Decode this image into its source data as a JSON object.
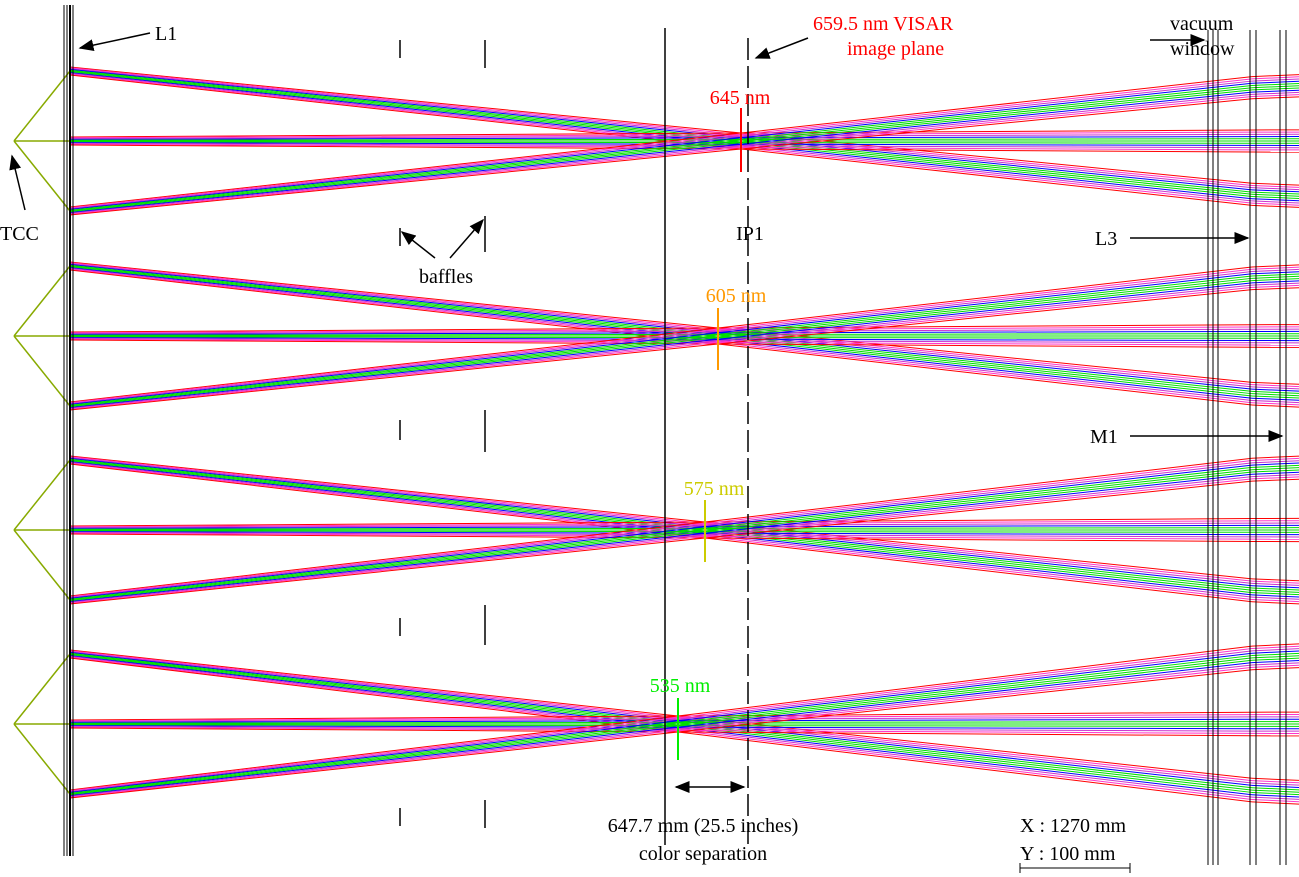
{
  "labels": {
    "l1": "L1",
    "visar_line1": "659.5 nm VISAR",
    "visar_line2": "image plane",
    "vacuum_line1": "vacuum",
    "vacuum_line2": "window",
    "tcc": "TCC",
    "ip1": "IP1",
    "l3": "L3",
    "baffles": "baffles",
    "m1": "M1",
    "wl_645": "645 nm",
    "wl_605": "605 nm",
    "wl_575": "575 nm",
    "wl_535": "535 nm",
    "separation_line1": "647.7 mm (25.5 inches)",
    "separation_line2": "color separation",
    "scale_x": "X : 1270 mm",
    "scale_y": "Y : 100  mm"
  }
}
